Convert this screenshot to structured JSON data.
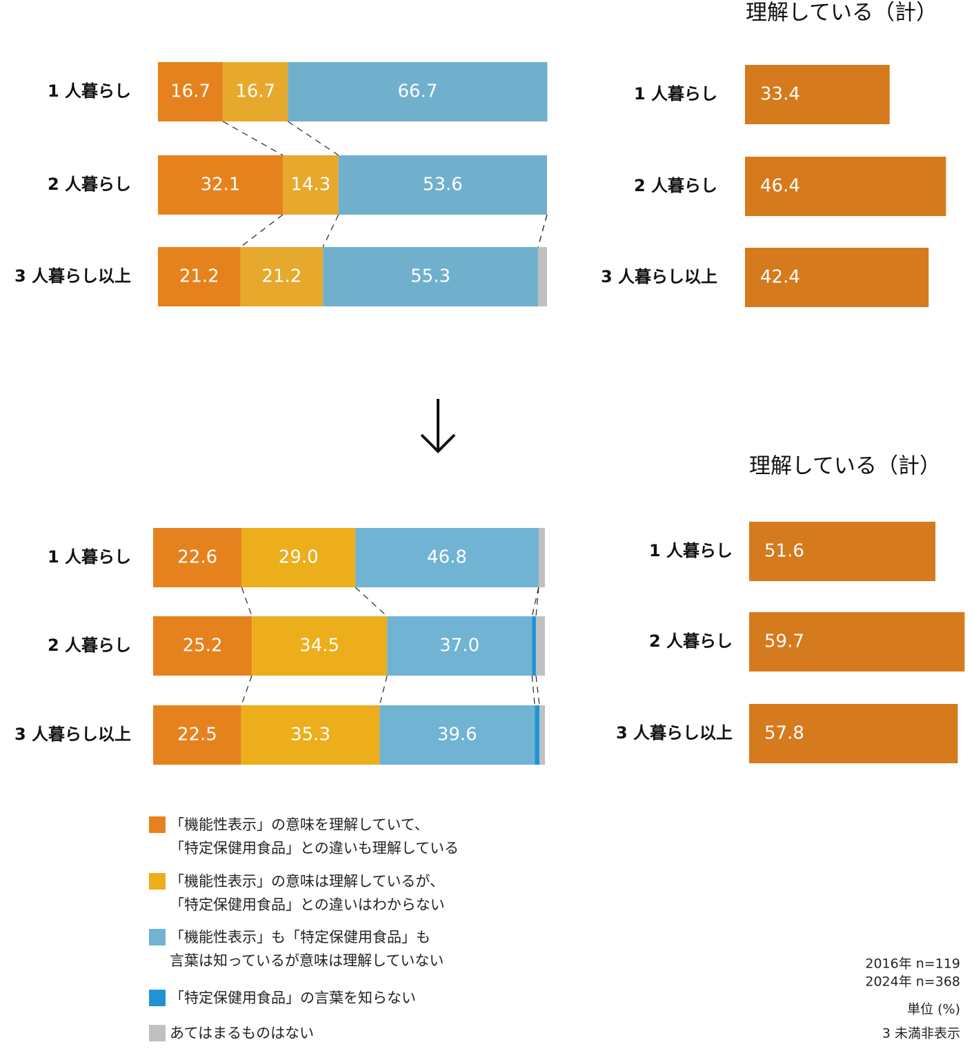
{
  "chart_data": [
    {
      "type": "stacked-bar",
      "categories": [
        "1 人暮らし",
        "2 人暮らし",
        "3 人暮らし以上"
      ],
      "xlim": [
        0,
        100
      ],
      "series": [
        {
          "color": "#e6821e",
          "values": [
            16.7,
            32.1,
            21.2
          ],
          "value_labels": [
            "16.7",
            "32.1",
            "21.2"
          ]
        },
        {
          "color": "#e6a92c",
          "values": [
            16.7,
            14.3,
            21.2
          ],
          "value_labels": [
            "16.7",
            "14.3",
            "21.2"
          ]
        },
        {
          "color": "#70b0cd",
          "values": [
            66.7,
            53.6,
            55.3
          ],
          "value_labels": [
            "66.7",
            "53.6",
            "55.3"
          ]
        },
        {
          "color": "#1f93d6",
          "values": [
            0,
            0,
            0
          ],
          "value_labels": [
            null,
            null,
            null
          ]
        },
        {
          "color": "#c0c0c0",
          "values": [
            0,
            0,
            2.3
          ],
          "value_labels": [
            null,
            null,
            null
          ]
        }
      ]
    },
    {
      "type": "stacked-bar",
      "categories": [
        "1 人暮らし",
        "2 人暮らし",
        "3 人暮らし以上"
      ],
      "xlim": [
        0,
        100
      ],
      "series": [
        {
          "name": "「機能性表示」の意味を理解していて、\n「特定保健用食品」との違いも理解している",
          "color": "#e6821e",
          "values": [
            22.6,
            25.2,
            22.5
          ],
          "value_labels": [
            "22.6",
            "25.2",
            "22.5"
          ]
        },
        {
          "name": "「機能性表示」の意味は理解しているが、\n「特定保健用食品」との違いはわからない",
          "color": "#edae1c",
          "values": [
            29.0,
            34.5,
            35.3
          ],
          "value_labels": [
            "29.0",
            "34.5",
            "35.3"
          ]
        },
        {
          "name": "「機能性表示」も「特定保健用食品」も\n言葉は知っているが意味は理解していない",
          "color": "#70b3d2",
          "values": [
            46.8,
            37.0,
            39.6
          ],
          "value_labels": [
            "46.8",
            "37.0",
            "39.6"
          ]
        },
        {
          "name": "「特定保健用食品」の言葉を知らない",
          "color": "#1f93d6",
          "values": [
            0,
            1.0,
            1.2
          ],
          "value_labels": [
            null,
            null,
            null
          ]
        },
        {
          "name": "あてはまるものはない",
          "color": "#c0c0c0",
          "values": [
            1.6,
            2.3,
            1.4
          ],
          "value_labels": [
            null,
            null,
            null
          ]
        }
      ],
      "annotations": [
        "2016年 n=119",
        "2024年 n=368",
        "単位 (%)",
        "3 未満非表示"
      ]
    },
    {
      "type": "bar",
      "title": "理解している（計）",
      "categories": [
        "1 人暮らし",
        "2 人暮らし",
        "3 人暮らし以上"
      ],
      "values": [
        33.4,
        46.4,
        42.4
      ],
      "color": "#d67a1e",
      "xlim": [
        0,
        50
      ]
    },
    {
      "type": "bar",
      "title": "理解している（計）",
      "categories": [
        "1 人暮らし",
        "2 人暮らし",
        "3 人暮らし以上"
      ],
      "values": [
        51.6,
        59.7,
        57.8
      ],
      "color": "#d67a1e",
      "xlim": [
        0,
        60
      ]
    }
  ]
}
